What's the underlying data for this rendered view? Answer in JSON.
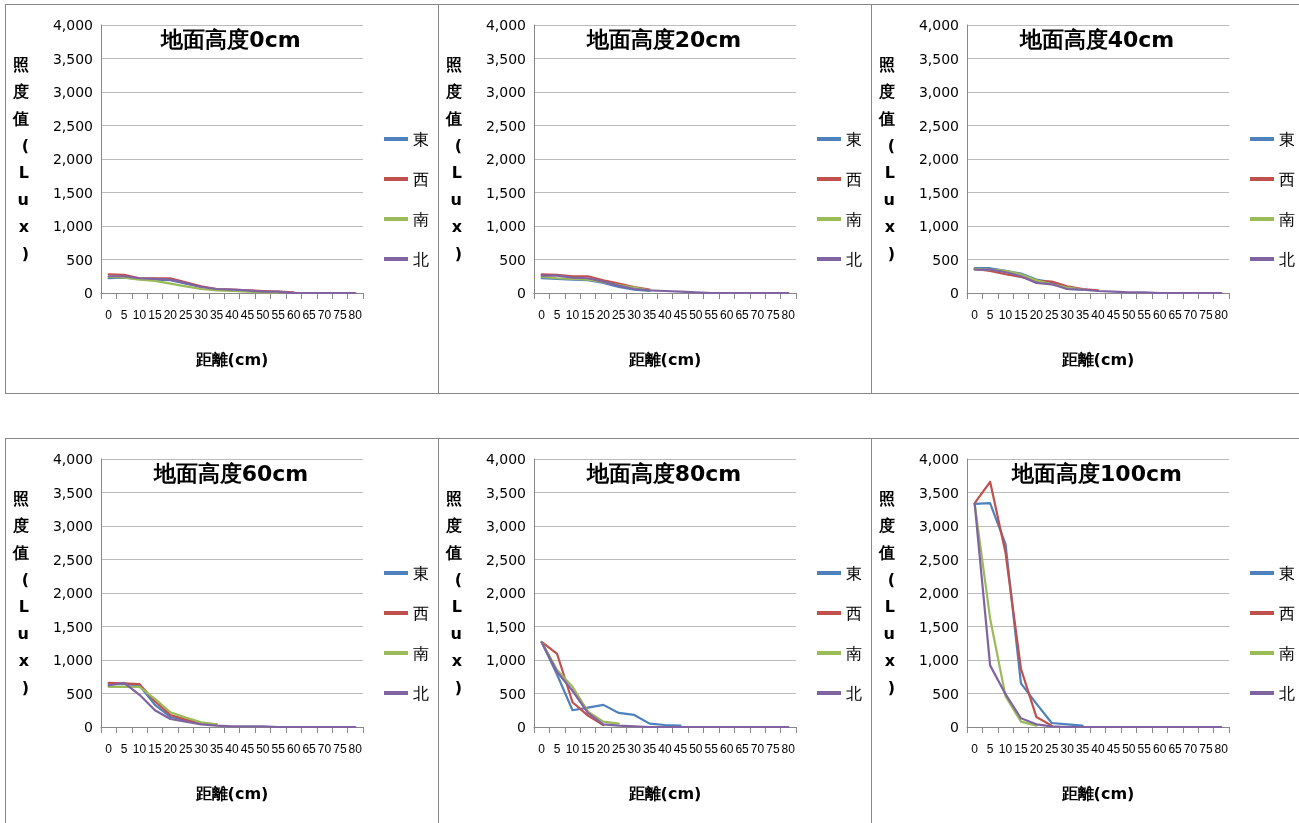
{
  "chart_data": [
    {
      "type": "line",
      "title": "地面高度0cm",
      "xlabel": "距離(cm)",
      "ylabel": "照度值(Lux)",
      "categories": [
        "0",
        "5",
        "10",
        "15",
        "20",
        "25",
        "30",
        "35",
        "40",
        "45",
        "50",
        "55",
        "60",
        "65",
        "70",
        "75",
        "80"
      ],
      "ylim": [
        0,
        4000
      ],
      "yticks": [
        {
          "value": 0,
          "label": "0"
        },
        {
          "value": 500,
          "label": "500"
        },
        {
          "value": 1000,
          "label": "1,000"
        },
        {
          "value": 1500,
          "label": "1,500"
        },
        {
          "value": 2000,
          "label": "2,000"
        },
        {
          "value": 2500,
          "label": "2,500"
        },
        {
          "value": 3000,
          "label": "3,000"
        },
        {
          "value": 3500,
          "label": "3,500"
        },
        {
          "value": 4000,
          "label": "4,000"
        }
      ],
      "grid": "y",
      "legend": "right",
      "marker": "none",
      "series": [
        {
          "name": "東",
          "color": "#4f81bd",
          "values": [
            220,
            230,
            210,
            200,
            190,
            140,
            90,
            null,
            null,
            null,
            null,
            null,
            null,
            null,
            null,
            null,
            null
          ]
        },
        {
          "name": "西",
          "color": "#c0504d",
          "values": [
            280,
            270,
            220,
            220,
            220,
            160,
            100,
            60,
            50,
            40,
            30,
            20,
            10,
            null,
            null,
            null,
            null
          ]
        },
        {
          "name": "南",
          "color": "#9bbb59",
          "values": [
            240,
            230,
            200,
            180,
            140,
            100,
            60,
            40,
            30,
            20,
            10,
            10,
            null,
            null,
            null,
            null,
            null
          ]
        },
        {
          "name": "北",
          "color": "#8064a2",
          "values": [
            250,
            250,
            220,
            210,
            200,
            150,
            90,
            60,
            50,
            40,
            20,
            20,
            0,
            0,
            0,
            0,
            0
          ]
        }
      ]
    },
    {
      "type": "line",
      "title": "地面高度20cm",
      "xlabel": "距離(cm)",
      "ylabel": "照度值(Lux)",
      "categories": [
        "0",
        "5",
        "10",
        "15",
        "20",
        "25",
        "30",
        "35",
        "40",
        "45",
        "50",
        "55",
        "60",
        "65",
        "70",
        "75",
        "80"
      ],
      "ylim": [
        0,
        4000
      ],
      "yticks": [
        {
          "value": 0,
          "label": "0"
        },
        {
          "value": 500,
          "label": "500"
        },
        {
          "value": 1000,
          "label": "1,000"
        },
        {
          "value": 1500,
          "label": "1,500"
        },
        {
          "value": 2000,
          "label": "2,000"
        },
        {
          "value": 2500,
          "label": "2,500"
        },
        {
          "value": 3000,
          "label": "3,000"
        },
        {
          "value": 3500,
          "label": "3,500"
        },
        {
          "value": 4000,
          "label": "4,000"
        }
      ],
      "grid": "y",
      "legend": "right",
      "marker": "none",
      "series": [
        {
          "name": "東",
          "color": "#4f81bd",
          "values": [
            220,
            210,
            200,
            190,
            150,
            90,
            50,
            30,
            null,
            null,
            null,
            null,
            null,
            null,
            null,
            null,
            null
          ]
        },
        {
          "name": "西",
          "color": "#c0504d",
          "values": [
            280,
            270,
            250,
            250,
            190,
            140,
            90,
            50,
            null,
            null,
            null,
            null,
            null,
            null,
            null,
            null,
            null
          ]
        },
        {
          "name": "南",
          "color": "#9bbb59",
          "values": [
            240,
            220,
            210,
            200,
            160,
            120,
            80,
            40,
            null,
            null,
            null,
            null,
            null,
            null,
            null,
            null,
            null
          ]
        },
        {
          "name": "北",
          "color": "#8064a2",
          "values": [
            260,
            260,
            230,
            220,
            170,
            110,
            60,
            40,
            30,
            20,
            10,
            0,
            0,
            0,
            0,
            0,
            0
          ]
        }
      ]
    },
    {
      "type": "line",
      "title": "地面高度40cm",
      "xlabel": "距離(cm)",
      "ylabel": "照度值(Lux)",
      "categories": [
        "0",
        "5",
        "10",
        "15",
        "20",
        "25",
        "30",
        "35",
        "40",
        "45",
        "50",
        "55",
        "60",
        "65",
        "70",
        "75",
        "80"
      ],
      "ylim": [
        0,
        4000
      ],
      "yticks": [
        {
          "value": 0,
          "label": "0"
        },
        {
          "value": 500,
          "label": "500"
        },
        {
          "value": 1000,
          "label": "1,000"
        },
        {
          "value": 1500,
          "label": "1,500"
        },
        {
          "value": 2000,
          "label": "2,000"
        },
        {
          "value": 2500,
          "label": "2,500"
        },
        {
          "value": 3000,
          "label": "3,000"
        },
        {
          "value": 3500,
          "label": "3,500"
        },
        {
          "value": 4000,
          "label": "4,000"
        }
      ],
      "grid": "y",
      "legend": "right",
      "marker": "none",
      "series": [
        {
          "name": "東",
          "color": "#4f81bd",
          "values": [
            370,
            370,
            330,
            290,
            200,
            160,
            60,
            50,
            null,
            null,
            null,
            null,
            null,
            null,
            null,
            null,
            null
          ]
        },
        {
          "name": "西",
          "color": "#c0504d",
          "values": [
            360,
            330,
            280,
            240,
            180,
            170,
            100,
            60,
            40,
            null,
            null,
            null,
            null,
            null,
            null,
            null,
            null
          ]
        },
        {
          "name": "南",
          "color": "#9bbb59",
          "values": [
            360,
            350,
            330,
            280,
            190,
            130,
            80,
            50,
            null,
            null,
            null,
            null,
            null,
            null,
            null,
            null,
            null
          ]
        },
        {
          "name": "北",
          "color": "#8064a2",
          "values": [
            350,
            350,
            310,
            250,
            150,
            130,
            60,
            50,
            30,
            20,
            10,
            10,
            0,
            0,
            0,
            0,
            0
          ]
        }
      ]
    },
    {
      "type": "line",
      "title": "地面高度60cm",
      "xlabel": "距離(cm)",
      "ylabel": "照度值(Lux)",
      "categories": [
        "0",
        "5",
        "10",
        "15",
        "20",
        "25",
        "30",
        "35",
        "40",
        "45",
        "50",
        "55",
        "60",
        "65",
        "70",
        "75",
        "80"
      ],
      "ylim": [
        0,
        4000
      ],
      "yticks": [
        {
          "value": 0,
          "label": "0"
        },
        {
          "value": 500,
          "label": "500"
        },
        {
          "value": 1000,
          "label": "1,000"
        },
        {
          "value": 1500,
          "label": "1,500"
        },
        {
          "value": 2000,
          "label": "2,000"
        },
        {
          "value": 2500,
          "label": "2,500"
        },
        {
          "value": 3000,
          "label": "3,000"
        },
        {
          "value": 3500,
          "label": "3,500"
        },
        {
          "value": 4000,
          "label": "4,000"
        }
      ],
      "grid": "y",
      "legend": "right",
      "marker": "none",
      "series": [
        {
          "name": "東",
          "color": "#4f81bd",
          "values": [
            640,
            640,
            620,
            330,
            150,
            100,
            50,
            30,
            null,
            null,
            null,
            null,
            null,
            null,
            null,
            null,
            null
          ]
        },
        {
          "name": "西",
          "color": "#c0504d",
          "values": [
            660,
            650,
            640,
            380,
            180,
            110,
            60,
            40,
            null,
            null,
            null,
            null,
            null,
            null,
            null,
            null,
            null
          ]
        },
        {
          "name": "南",
          "color": "#9bbb59",
          "values": [
            600,
            600,
            600,
            420,
            220,
            140,
            70,
            40,
            null,
            null,
            null,
            null,
            null,
            null,
            null,
            null,
            null
          ]
        },
        {
          "name": "北",
          "color": "#8064a2",
          "values": [
            620,
            660,
            480,
            250,
            120,
            80,
            40,
            20,
            10,
            10,
            10,
            0,
            0,
            0,
            0,
            0,
            0
          ]
        }
      ]
    },
    {
      "type": "line",
      "title": "地面高度80cm",
      "xlabel": "距離(cm)",
      "ylabel": "照度值(Lux)",
      "categories": [
        "0",
        "5",
        "10",
        "15",
        "20",
        "25",
        "30",
        "35",
        "40",
        "45",
        "50",
        "55",
        "60",
        "65",
        "70",
        "75",
        "80"
      ],
      "ylim": [
        0,
        4000
      ],
      "yticks": [
        {
          "value": 0,
          "label": "0"
        },
        {
          "value": 500,
          "label": "500"
        },
        {
          "value": 1000,
          "label": "1,000"
        },
        {
          "value": 1500,
          "label": "1,500"
        },
        {
          "value": 2000,
          "label": "2,000"
        },
        {
          "value": 2500,
          "label": "2,500"
        },
        {
          "value": 3000,
          "label": "3,000"
        },
        {
          "value": 3500,
          "label": "3,500"
        },
        {
          "value": 4000,
          "label": "4,000"
        }
      ],
      "grid": "y",
      "legend": "right",
      "marker": "none",
      "series": [
        {
          "name": "東",
          "color": "#4f81bd",
          "values": [
            1270,
            780,
            250,
            290,
            330,
            210,
            180,
            50,
            30,
            20,
            null,
            null,
            null,
            null,
            null,
            null,
            null
          ]
        },
        {
          "name": "西",
          "color": "#c0504d",
          "values": [
            1270,
            1090,
            370,
            170,
            30,
            null,
            null,
            null,
            null,
            null,
            null,
            null,
            null,
            null,
            null,
            null,
            null
          ]
        },
        {
          "name": "南",
          "color": "#9bbb59",
          "values": [
            1270,
            850,
            600,
            230,
            80,
            50,
            null,
            null,
            null,
            null,
            null,
            null,
            null,
            null,
            null,
            null,
            null
          ]
        },
        {
          "name": "北",
          "color": "#8064a2",
          "values": [
            1260,
            820,
            540,
            210,
            40,
            20,
            10,
            0,
            0,
            0,
            0,
            0,
            0,
            0,
            0,
            0,
            0
          ]
        }
      ]
    },
    {
      "type": "line",
      "title": "地面高度100cm",
      "xlabel": "距離(cm)",
      "ylabel": "照度值(Lux)",
      "categories": [
        "0",
        "5",
        "10",
        "15",
        "20",
        "25",
        "30",
        "35",
        "40",
        "45",
        "50",
        "55",
        "60",
        "65",
        "70",
        "75",
        "80"
      ],
      "ylim": [
        0,
        4000
      ],
      "yticks": [
        {
          "value": 0,
          "label": "0"
        },
        {
          "value": 500,
          "label": "500"
        },
        {
          "value": 1000,
          "label": "1,000"
        },
        {
          "value": 1500,
          "label": "1,500"
        },
        {
          "value": 2000,
          "label": "2,000"
        },
        {
          "value": 2500,
          "label": "2,500"
        },
        {
          "value": 3000,
          "label": "3,000"
        },
        {
          "value": 3500,
          "label": "3,500"
        },
        {
          "value": 4000,
          "label": "4,000"
        }
      ],
      "grid": "y",
      "legend": "right",
      "marker": "none",
      "series": [
        {
          "name": "東",
          "color": "#4f81bd",
          "values": [
            3330,
            3340,
            2730,
            650,
            350,
            60,
            40,
            20,
            null,
            null,
            null,
            null,
            null,
            null,
            null,
            null,
            null
          ]
        },
        {
          "name": "西",
          "color": "#c0504d",
          "values": [
            3340,
            3660,
            2600,
            870,
            150,
            20,
            null,
            null,
            null,
            null,
            null,
            null,
            null,
            null,
            null,
            null,
            null
          ]
        },
        {
          "name": "南",
          "color": "#9bbb59",
          "values": [
            3330,
            1620,
            460,
            80,
            20,
            null,
            null,
            null,
            null,
            null,
            null,
            null,
            null,
            null,
            null,
            null,
            null
          ]
        },
        {
          "name": "北",
          "color": "#8064a2",
          "values": [
            3330,
            920,
            490,
            130,
            40,
            10,
            0,
            0,
            0,
            0,
            0,
            0,
            0,
            0,
            0,
            0,
            0
          ]
        }
      ]
    }
  ]
}
